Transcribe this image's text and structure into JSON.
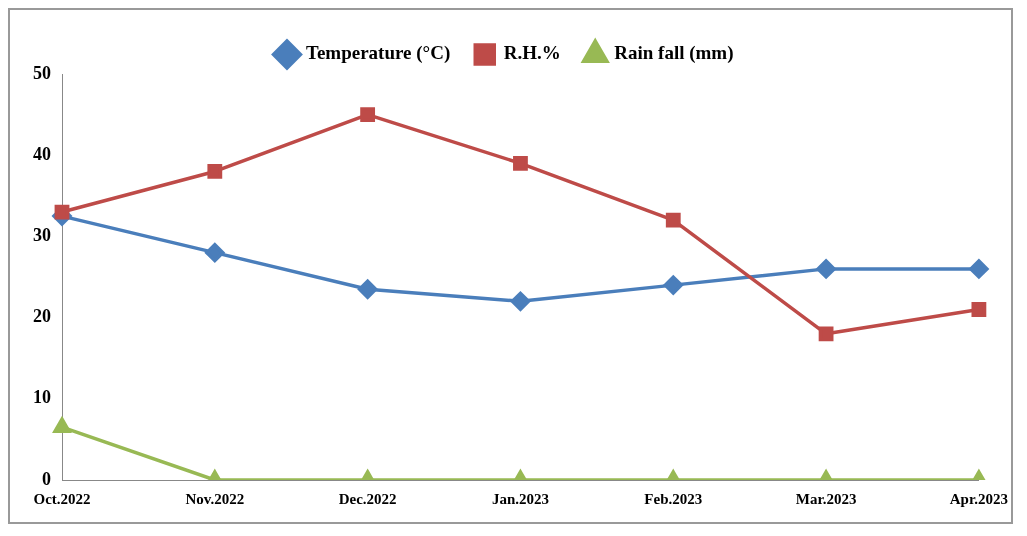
{
  "chart_data": {
    "type": "line",
    "categories": [
      "Oct.2022",
      "Nov.2022",
      "Dec.2022",
      "Jan.2023",
      "Feb.2023",
      "Mar.2023",
      "Apr.2023"
    ],
    "series": [
      {
        "name": "Temperature (°C)",
        "color": "#4a7ebb",
        "marker": "diamond",
        "values": [
          32.5,
          28,
          23.5,
          22,
          24,
          26,
          26
        ]
      },
      {
        "name": "R.H.%",
        "color": "#be4b48",
        "marker": "square",
        "values": [
          33,
          38,
          45,
          39,
          32,
          18,
          21
        ]
      },
      {
        "name": "Rain fall (mm)",
        "color": "#98b954",
        "marker": "triangle",
        "values": [
          6.5,
          0,
          0,
          0,
          0,
          0,
          0
        ]
      }
    ],
    "ylim": [
      0,
      50
    ],
    "yticks": [
      0,
      10,
      20,
      30,
      40,
      50
    ],
    "grid": false,
    "legend": "top",
    "line_style": "solid"
  }
}
